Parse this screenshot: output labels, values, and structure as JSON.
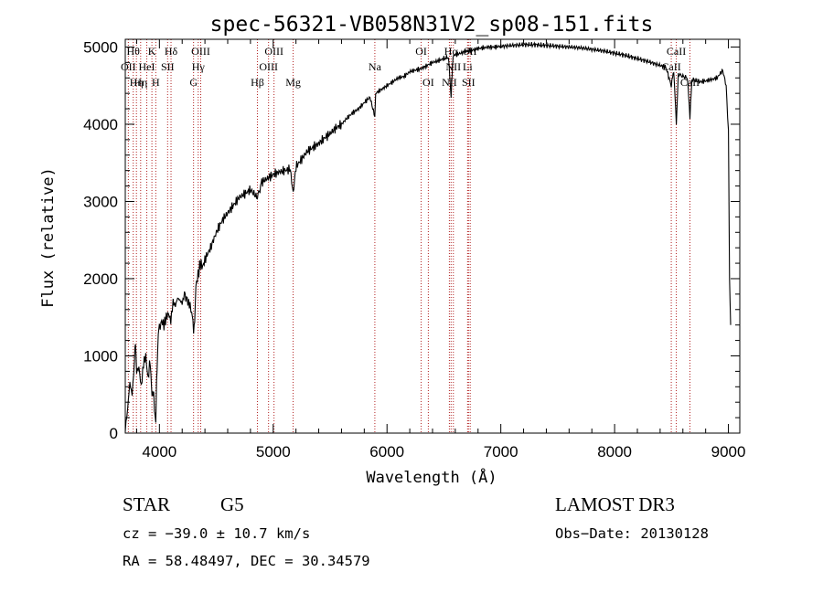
{
  "chart_data": {
    "type": "line",
    "title": "spec-56321-VB058N31V2_sp08-151.fits",
    "xlabel": "Wavelength (Å)",
    "ylabel": "Flux (relative)",
    "xlim": [
      3700,
      9100
    ],
    "ylim": [
      0,
      5100
    ],
    "x_ticks": [
      4000,
      5000,
      6000,
      7000,
      8000,
      9000
    ],
    "y_ticks": [
      0,
      1000,
      2000,
      3000,
      4000,
      5000
    ],
    "series": [
      {
        "name": "spectrum",
        "points": [
          [
            3700,
            50
          ],
          [
            3720,
            300
          ],
          [
            3740,
            650
          ],
          [
            3760,
            500
          ],
          [
            3780,
            900
          ],
          [
            3790,
            1150
          ],
          [
            3800,
            800
          ],
          [
            3820,
            850
          ],
          [
            3840,
            600
          ],
          [
            3860,
            900
          ],
          [
            3880,
            1000
          ],
          [
            3900,
            700
          ],
          [
            3920,
            950
          ],
          [
            3935,
            500
          ],
          [
            3950,
            450
          ],
          [
            3968,
            120
          ],
          [
            3975,
            700
          ],
          [
            3990,
            1300
          ],
          [
            4000,
            1350
          ],
          [
            4020,
            1450
          ],
          [
            4040,
            1400
          ],
          [
            4060,
            1500
          ],
          [
            4080,
            1550
          ],
          [
            4100,
            1450
          ],
          [
            4120,
            1700
          ],
          [
            4140,
            1650
          ],
          [
            4160,
            1750
          ],
          [
            4180,
            1720
          ],
          [
            4200,
            1680
          ],
          [
            4220,
            1800
          ],
          [
            4250,
            1700
          ],
          [
            4270,
            1650
          ],
          [
            4290,
            1500
          ],
          [
            4300,
            1350
          ],
          [
            4310,
            1500
          ],
          [
            4320,
            1900
          ],
          [
            4340,
            2050
          ],
          [
            4360,
            2200
          ],
          [
            4380,
            2150
          ],
          [
            4400,
            2250
          ],
          [
            4450,
            2400
          ],
          [
            4500,
            2600
          ],
          [
            4550,
            2750
          ],
          [
            4600,
            2850
          ],
          [
            4650,
            2950
          ],
          [
            4700,
            3050
          ],
          [
            4750,
            3100
          ],
          [
            4800,
            3150
          ],
          [
            4861,
            3050
          ],
          [
            4900,
            3250
          ],
          [
            4950,
            3300
          ],
          [
            5000,
            3350
          ],
          [
            5050,
            3380
          ],
          [
            5100,
            3400
          ],
          [
            5150,
            3420
          ],
          [
            5175,
            3100
          ],
          [
            5200,
            3450
          ],
          [
            5250,
            3550
          ],
          [
            5300,
            3650
          ],
          [
            5350,
            3700
          ],
          [
            5400,
            3750
          ],
          [
            5450,
            3820
          ],
          [
            5500,
            3880
          ],
          [
            5550,
            3950
          ],
          [
            5600,
            4000
          ],
          [
            5650,
            4080
          ],
          [
            5700,
            4150
          ],
          [
            5750,
            4200
          ],
          [
            5800,
            4280
          ],
          [
            5850,
            4350
          ],
          [
            5893,
            4100
          ],
          [
            5900,
            4400
          ],
          [
            5950,
            4450
          ],
          [
            6000,
            4500
          ],
          [
            6050,
            4550
          ],
          [
            6100,
            4600
          ],
          [
            6150,
            4620
          ],
          [
            6200,
            4680
          ],
          [
            6250,
            4700
          ],
          [
            6300,
            4720
          ],
          [
            6350,
            4760
          ],
          [
            6400,
            4800
          ],
          [
            6450,
            4820
          ],
          [
            6500,
            4850
          ],
          [
            6540,
            4870
          ],
          [
            6563,
            4350
          ],
          [
            6580,
            4880
          ],
          [
            6600,
            4900
          ],
          [
            6650,
            4920
          ],
          [
            6700,
            4950
          ],
          [
            6750,
            4960
          ],
          [
            6800,
            4980
          ],
          [
            6850,
            4990
          ],
          [
            6900,
            5000
          ],
          [
            6950,
            5000
          ],
          [
            7000,
            5010
          ],
          [
            7100,
            5020
          ],
          [
            7200,
            5030
          ],
          [
            7300,
            5030
          ],
          [
            7400,
            5020
          ],
          [
            7500,
            5010
          ],
          [
            7600,
            5000
          ],
          [
            7700,
            4990
          ],
          [
            7800,
            4970
          ],
          [
            7900,
            4950
          ],
          [
            8000,
            4920
          ],
          [
            8100,
            4890
          ],
          [
            8200,
            4850
          ],
          [
            8300,
            4810
          ],
          [
            8400,
            4760
          ],
          [
            8450,
            4740
          ],
          [
            8498,
            4500
          ],
          [
            8520,
            4700
          ],
          [
            8542,
            4000
          ],
          [
            8560,
            4650
          ],
          [
            8600,
            4620
          ],
          [
            8640,
            4600
          ],
          [
            8662,
            4100
          ],
          [
            8680,
            4580
          ],
          [
            8750,
            4550
          ],
          [
            8800,
            4560
          ],
          [
            8850,
            4580
          ],
          [
            8900,
            4600
          ],
          [
            8950,
            4700
          ],
          [
            8980,
            4500
          ],
          [
            9000,
            3900
          ],
          [
            9010,
            2000
          ],
          [
            9020,
            1400
          ]
        ]
      }
    ],
    "lines": [
      {
        "wl": 3727,
        "label": "OII",
        "row": 1
      },
      {
        "wl": 3770,
        "label": "Hθ",
        "row": 0
      },
      {
        "wl": 3798,
        "label": "Hη",
        "row": 2
      },
      {
        "wl": 3835,
        "label": "Hη",
        "row": 2
      },
      {
        "wl": 3889,
        "label": "HeI",
        "row": 1
      },
      {
        "wl": 3934,
        "label": "K",
        "row": 0
      },
      {
        "wl": 3968,
        "label": "H",
        "row": 2
      },
      {
        "wl": 4072,
        "label": "SII",
        "row": 1
      },
      {
        "wl": 4102,
        "label": "Hδ",
        "row": 0
      },
      {
        "wl": 4300,
        "label": "G",
        "row": 2
      },
      {
        "wl": 4341,
        "label": "Hγ",
        "row": 1
      },
      {
        "wl": 4363,
        "label": "OIII",
        "row": 0
      },
      {
        "wl": 4861,
        "label": "Hβ",
        "row": 2
      },
      {
        "wl": 4959,
        "label": "OIII",
        "row": 1
      },
      {
        "wl": 5007,
        "label": "OIII",
        "row": 0
      },
      {
        "wl": 5175,
        "label": "Mg",
        "row": 2
      },
      {
        "wl": 5893,
        "label": "Na",
        "row": 1
      },
      {
        "wl": 6300,
        "label": "OI",
        "row": 0
      },
      {
        "wl": 6363,
        "label": "OI",
        "row": 2
      },
      {
        "wl": 6548,
        "label": "NII",
        "row": 2
      },
      {
        "wl": 6563,
        "label": "Hα",
        "row": 0
      },
      {
        "wl": 6583,
        "label": "NII",
        "row": 1
      },
      {
        "wl": 6716,
        "label": "SII",
        "row": 2
      },
      {
        "wl": 6731,
        "label": "SII",
        "row": 0
      },
      {
        "wl": 6708,
        "label": "Li",
        "row": 1
      },
      {
        "wl": 8498,
        "label": "CaII",
        "row": 1
      },
      {
        "wl": 8542,
        "label": "CaII",
        "row": 0
      },
      {
        "wl": 8662,
        "label": "CaII",
        "row": 2
      }
    ]
  },
  "info": {
    "object_class": "STAR",
    "subclass": "G5",
    "survey": "LAMOST DR3",
    "redshift": "cz = −39.0 ± 10.7 km/s",
    "obs_date": "Obs−Date: 20130128",
    "coords": "RA =  58.48497, DEC =  30.34579"
  },
  "colors": {
    "spectrum": "#000000",
    "line_marker": "#b22222",
    "axis": "#000000"
  }
}
